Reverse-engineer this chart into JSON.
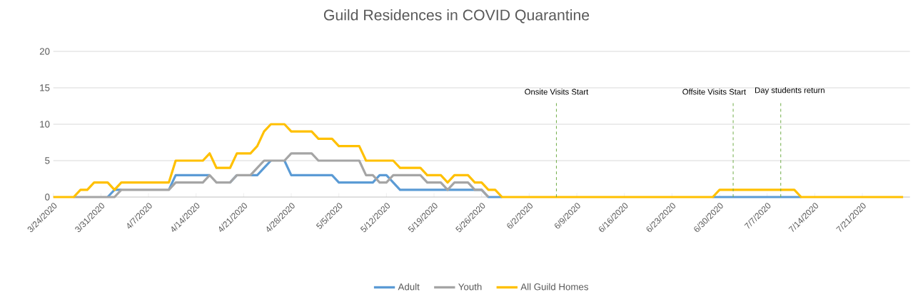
{
  "chart_data": {
    "type": "line",
    "title": "Guild Residences in COVID Quarantine",
    "x": [
      "2020-03-24",
      "2020-03-25",
      "2020-03-26",
      "2020-03-27",
      "2020-03-28",
      "2020-03-29",
      "2020-03-30",
      "2020-03-31",
      "2020-04-01",
      "2020-04-02",
      "2020-04-03",
      "2020-04-04",
      "2020-04-05",
      "2020-04-06",
      "2020-04-07",
      "2020-04-08",
      "2020-04-09",
      "2020-04-10",
      "2020-04-11",
      "2020-04-12",
      "2020-04-13",
      "2020-04-14",
      "2020-04-15",
      "2020-04-16",
      "2020-04-17",
      "2020-04-18",
      "2020-04-19",
      "2020-04-20",
      "2020-04-21",
      "2020-04-22",
      "2020-04-23",
      "2020-04-24",
      "2020-04-25",
      "2020-04-26",
      "2020-04-27",
      "2020-04-28",
      "2020-04-29",
      "2020-04-30",
      "2020-05-01",
      "2020-05-02",
      "2020-05-03",
      "2020-05-04",
      "2020-05-05",
      "2020-05-06",
      "2020-05-07",
      "2020-05-08",
      "2020-05-09",
      "2020-05-10",
      "2020-05-11",
      "2020-05-12",
      "2020-05-13",
      "2020-05-14",
      "2020-05-15",
      "2020-05-16",
      "2020-05-17",
      "2020-05-18",
      "2020-05-19",
      "2020-05-20",
      "2020-05-21",
      "2020-05-22",
      "2020-05-23",
      "2020-05-24",
      "2020-05-25",
      "2020-05-26",
      "2020-05-27",
      "2020-05-28",
      "2020-05-29",
      "2020-05-30",
      "2020-05-31",
      "2020-06-01",
      "2020-06-02",
      "2020-06-03",
      "2020-06-04",
      "2020-06-05",
      "2020-06-06",
      "2020-06-07",
      "2020-06-08",
      "2020-06-09",
      "2020-06-10",
      "2020-06-11",
      "2020-06-12",
      "2020-06-13",
      "2020-06-14",
      "2020-06-15",
      "2020-06-16",
      "2020-06-17",
      "2020-06-18",
      "2020-06-19",
      "2020-06-20",
      "2020-06-21",
      "2020-06-22",
      "2020-06-23",
      "2020-06-24",
      "2020-06-25",
      "2020-06-26",
      "2020-06-27",
      "2020-06-28",
      "2020-06-29",
      "2020-06-30",
      "2020-07-01",
      "2020-07-02",
      "2020-07-03",
      "2020-07-04",
      "2020-07-05",
      "2020-07-06",
      "2020-07-07",
      "2020-07-08",
      "2020-07-09",
      "2020-07-10",
      "2020-07-11",
      "2020-07-12",
      "2020-07-13",
      "2020-07-14",
      "2020-07-15",
      "2020-07-16",
      "2020-07-17",
      "2020-07-18",
      "2020-07-19",
      "2020-07-20",
      "2020-07-21",
      "2020-07-22",
      "2020-07-23",
      "2020-07-24",
      "2020-07-25",
      "2020-07-26",
      "2020-07-27"
    ],
    "xlim": [
      "2020-03-24",
      "2020-07-28"
    ],
    "xticks": [
      {
        "value": "2020-03-24",
        "label": "3/24/2020"
      },
      {
        "value": "2020-03-31",
        "label": "3/31/2020"
      },
      {
        "value": "2020-04-07",
        "label": "4/7/2020"
      },
      {
        "value": "2020-04-14",
        "label": "4/14/2020"
      },
      {
        "value": "2020-04-21",
        "label": "4/21/2020"
      },
      {
        "value": "2020-04-28",
        "label": "4/28/2020"
      },
      {
        "value": "2020-05-05",
        "label": "5/5/2020"
      },
      {
        "value": "2020-05-12",
        "label": "5/12/2020"
      },
      {
        "value": "2020-05-19",
        "label": "5/19/2020"
      },
      {
        "value": "2020-05-26",
        "label": "5/26/2020"
      },
      {
        "value": "2020-06-02",
        "label": "6/2/2020"
      },
      {
        "value": "2020-06-09",
        "label": "6/9/2020"
      },
      {
        "value": "2020-06-16",
        "label": "6/16/2020"
      },
      {
        "value": "2020-06-23",
        "label": "6/23/2020"
      },
      {
        "value": "2020-06-30",
        "label": "6/30/2020"
      },
      {
        "value": "2020-07-07",
        "label": "7/7/2020"
      },
      {
        "value": "2020-07-14",
        "label": "7/14/2020"
      },
      {
        "value": "2020-07-21",
        "label": "7/21/2020"
      }
    ],
    "ylim": [
      0,
      20
    ],
    "yticks": [
      0,
      5,
      10,
      15,
      20
    ],
    "grid": "y",
    "legend": "bottom",
    "marker": "none",
    "series": [
      {
        "name": "Adult",
        "color": "#5b9bd5",
        "values": [
          null,
          null,
          null,
          null,
          null,
          null,
          null,
          null,
          0,
          1,
          1,
          null,
          null,
          null,
          null,
          null,
          null,
          1,
          3,
          3,
          3,
          3,
          3,
          3,
          null,
          null,
          2,
          3,
          null,
          3,
          3,
          4,
          5,
          null,
          5,
          3,
          3,
          3,
          3,
          3,
          3,
          3,
          2,
          2,
          2,
          2,
          2,
          2,
          3,
          3,
          2,
          1,
          1,
          1,
          1,
          1,
          1,
          1,
          1,
          1,
          1,
          1,
          1,
          1,
          0,
          0,
          0,
          null,
          null,
          null,
          null,
          null,
          null,
          null,
          null,
          null,
          null,
          null,
          null,
          null,
          null,
          null,
          null,
          null,
          null,
          null,
          null,
          null,
          null,
          null,
          null,
          null,
          null,
          null,
          null,
          null,
          null,
          0,
          0,
          0,
          0,
          0,
          0,
          0,
          0,
          0,
          0,
          0,
          0,
          0,
          0,
          null,
          null,
          null,
          null,
          null,
          null,
          null,
          null,
          null,
          null,
          null,
          null,
          null,
          null,
          null
        ]
      },
      {
        "name": "Youth",
        "color": "#a5a5a5",
        "values": [
          null,
          null,
          null,
          0,
          0,
          0,
          0,
          0,
          0,
          0,
          1,
          1,
          1,
          1,
          1,
          1,
          1,
          1,
          2,
          2,
          2,
          2,
          2,
          3,
          2,
          2,
          2,
          3,
          3,
          3,
          4,
          5,
          5,
          5,
          5,
          6,
          6,
          6,
          6,
          5,
          5,
          5,
          5,
          5,
          5,
          5,
          3,
          3,
          2,
          2,
          3,
          3,
          3,
          3,
          3,
          2,
          2,
          2,
          1,
          2,
          2,
          2,
          1,
          1,
          0,
          null,
          null,
          null,
          null,
          null,
          null,
          null,
          null,
          null,
          null,
          null,
          null,
          null,
          null,
          null,
          null,
          null,
          null,
          null,
          null,
          null,
          null,
          null,
          null,
          null,
          null,
          null,
          null,
          null,
          null,
          null,
          null,
          null,
          null,
          null,
          null,
          null,
          null,
          null,
          null,
          null,
          null,
          null,
          null,
          null,
          null,
          null,
          null,
          null,
          null,
          null,
          null,
          null,
          null,
          null,
          null,
          null,
          null,
          null,
          null,
          null
        ]
      },
      {
        "name": "All Guild Homes",
        "color": "#ffc000",
        "values": [
          0,
          0,
          0,
          0,
          1,
          1,
          2,
          2,
          2,
          1,
          2,
          2,
          2,
          2,
          2,
          2,
          2,
          2,
          5,
          5,
          5,
          5,
          5,
          6,
          4,
          4,
          4,
          6,
          6,
          6,
          7,
          9,
          10,
          10,
          10,
          9,
          9,
          9,
          9,
          8,
          8,
          8,
          7,
          7,
          7,
          7,
          5,
          5,
          5,
          5,
          5,
          4,
          4,
          4,
          4,
          3,
          3,
          3,
          2,
          3,
          3,
          3,
          2,
          2,
          1,
          1,
          0,
          0,
          0,
          0,
          0,
          0,
          0,
          0,
          0,
          0,
          0,
          0,
          0,
          0,
          0,
          0,
          0,
          0,
          0,
          0,
          0,
          0,
          0,
          0,
          0,
          0,
          0,
          0,
          0,
          0,
          0,
          0,
          1,
          1,
          1,
          1,
          1,
          1,
          1,
          1,
          1,
          1,
          1,
          1,
          0,
          0,
          0,
          0,
          0,
          0,
          0,
          0,
          0,
          0,
          0,
          0,
          0,
          0,
          0,
          0
        ]
      }
    ],
    "ref_lines": [
      {
        "axis": "x",
        "value": "2020-06-06",
        "label": "Onsite Visits Start",
        "color": "#70ad47",
        "line_style": "dashed"
      },
      {
        "axis": "x",
        "value": "2020-07-02",
        "label": "Offsite Visits Start",
        "color": "#70ad47",
        "line_style": "dashed"
      },
      {
        "axis": "x",
        "value": "2020-07-09",
        "label": "Day students return",
        "color": "#70ad47",
        "line_style": "dashed"
      }
    ]
  }
}
